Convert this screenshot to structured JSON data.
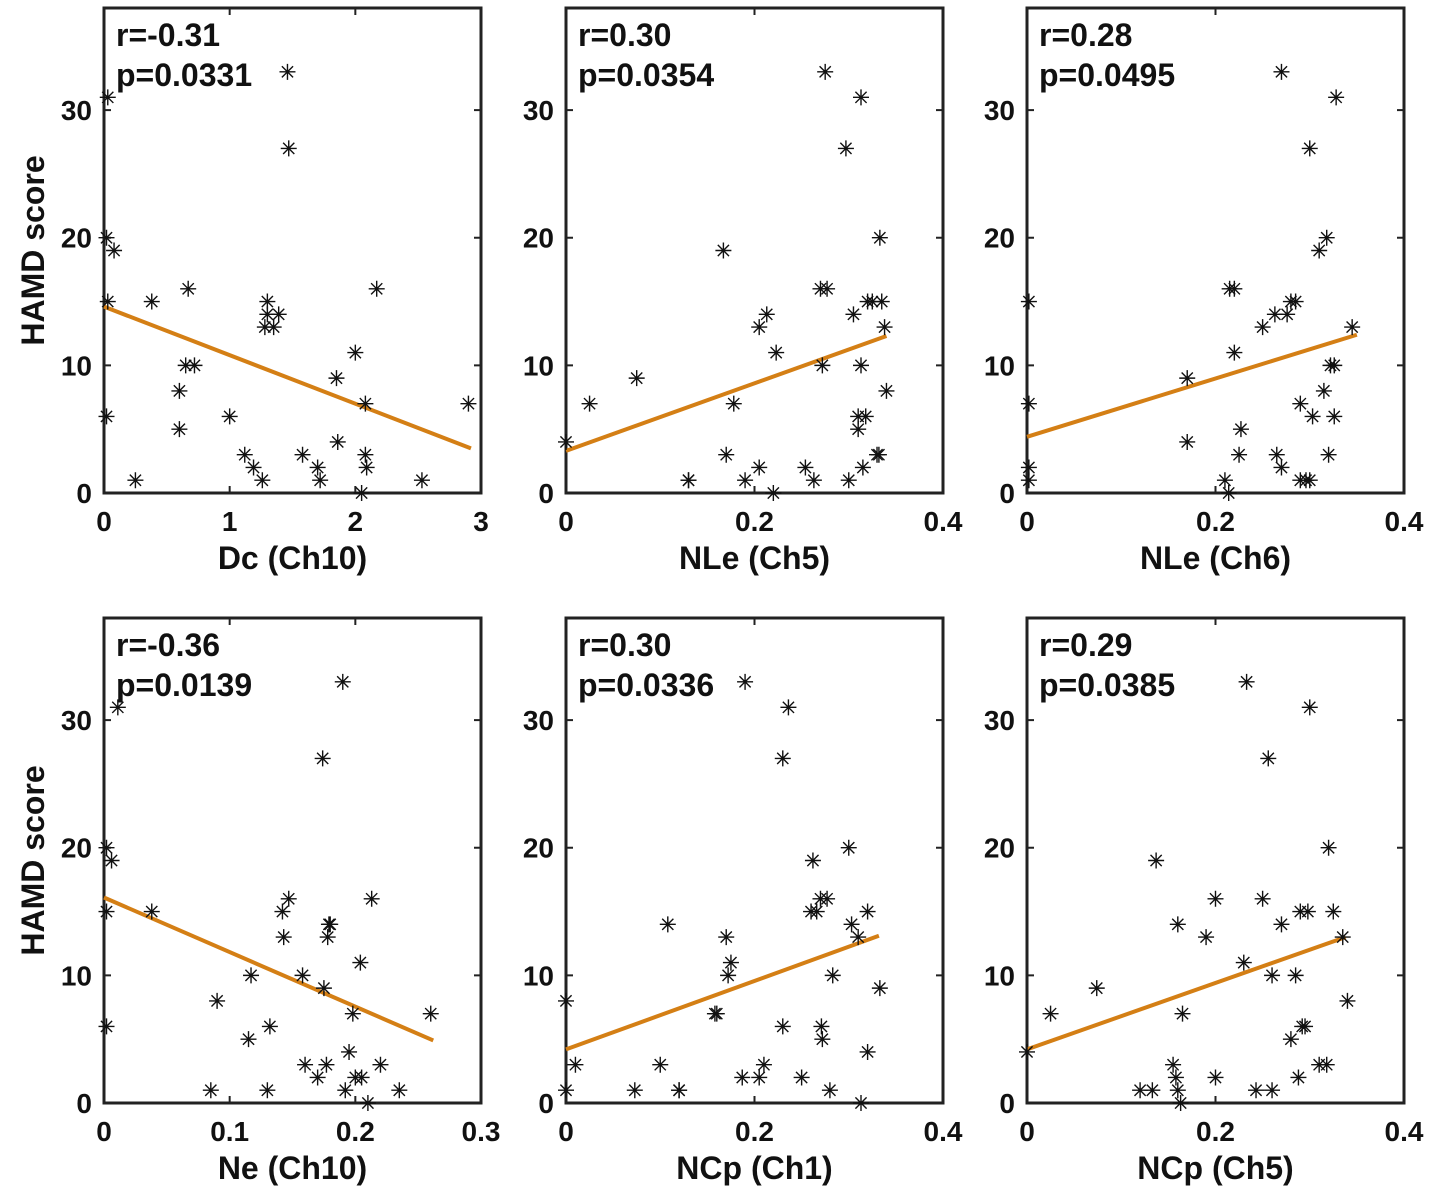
{
  "figure": {
    "ylabel": "HAMD score",
    "line_color": "#D47F15",
    "marker_color": "#111111"
  },
  "chart_data": [
    {
      "type": "scatter",
      "title": "",
      "xlabel": "Dc (Ch10)",
      "ylabel": "HAMD score",
      "annotation": [
        "r=-0.31",
        "p=0.0331"
      ],
      "xlim": [
        0,
        3
      ],
      "ylim": [
        0,
        38
      ],
      "xticks": [
        0,
        1,
        2,
        3
      ],
      "xtick_labels": [
        "0",
        "1",
        "2",
        "3"
      ],
      "yticks": [
        0,
        10,
        20,
        30
      ],
      "fit_line": {
        "x": [
          0,
          2.92
        ],
        "y": [
          14.6,
          3.5
        ]
      },
      "points": [
        [
          0.03,
          31
        ],
        [
          0.02,
          20
        ],
        [
          0.08,
          19
        ],
        [
          0.03,
          15
        ],
        [
          0.02,
          6
        ],
        [
          0.25,
          1
        ],
        [
          0.38,
          15
        ],
        [
          0.6,
          8
        ],
        [
          0.6,
          5
        ],
        [
          0.67,
          16
        ],
        [
          0.65,
          10
        ],
        [
          0.72,
          10
        ],
        [
          1.0,
          6
        ],
        [
          1.12,
          3
        ],
        [
          1.19,
          2
        ],
        [
          1.26,
          1
        ],
        [
          1.28,
          13
        ],
        [
          1.3,
          15
        ],
        [
          1.3,
          14
        ],
        [
          1.35,
          13
        ],
        [
          1.39,
          14
        ],
        [
          1.46,
          33
        ],
        [
          1.47,
          27
        ],
        [
          1.58,
          3
        ],
        [
          1.7,
          2
        ],
        [
          1.72,
          1
        ],
        [
          1.85,
          9
        ],
        [
          1.86,
          4
        ],
        [
          2.0,
          11
        ],
        [
          2.05,
          0
        ],
        [
          2.08,
          7
        ],
        [
          2.08,
          3
        ],
        [
          2.09,
          2
        ],
        [
          2.17,
          16
        ],
        [
          2.53,
          1
        ],
        [
          2.9,
          7
        ]
      ]
    },
    {
      "type": "scatter",
      "title": "",
      "xlabel": "NLe (Ch5)",
      "ylabel": "",
      "annotation": [
        "r=0.30",
        "p=0.0354"
      ],
      "xlim": [
        0,
        0.4
      ],
      "ylim": [
        0,
        38
      ],
      "xticks": [
        0,
        0.2,
        0.4
      ],
      "xtick_labels": [
        "0",
        "0.2",
        "0.4"
      ],
      "yticks": [
        0,
        10,
        20,
        30
      ],
      "fit_line": {
        "x": [
          0,
          0.34
        ],
        "y": [
          3.3,
          12.3
        ]
      },
      "points": [
        [
          0.0,
          4
        ],
        [
          0.025,
          7
        ],
        [
          0.075,
          9
        ],
        [
          0.13,
          1
        ],
        [
          0.13,
          1
        ],
        [
          0.167,
          19
        ],
        [
          0.17,
          3
        ],
        [
          0.178,
          7
        ],
        [
          0.19,
          1
        ],
        [
          0.205,
          13
        ],
        [
          0.205,
          2
        ],
        [
          0.213,
          14
        ],
        [
          0.22,
          0
        ],
        [
          0.223,
          11
        ],
        [
          0.254,
          2
        ],
        [
          0.263,
          1
        ],
        [
          0.27,
          16
        ],
        [
          0.272,
          10
        ],
        [
          0.277,
          16
        ],
        [
          0.275,
          33
        ],
        [
          0.297,
          27
        ],
        [
          0.3,
          1
        ],
        [
          0.305,
          14
        ],
        [
          0.31,
          6
        ],
        [
          0.31,
          5
        ],
        [
          0.313,
          31
        ],
        [
          0.313,
          10
        ],
        [
          0.315,
          2
        ],
        [
          0.318,
          6
        ],
        [
          0.32,
          15
        ],
        [
          0.325,
          15
        ],
        [
          0.33,
          3
        ],
        [
          0.332,
          3
        ],
        [
          0.333,
          20
        ],
        [
          0.335,
          15
        ],
        [
          0.338,
          13
        ],
        [
          0.34,
          8
        ]
      ]
    },
    {
      "type": "scatter",
      "title": "",
      "xlabel": "NLe (Ch6)",
      "ylabel": "",
      "annotation": [
        "r=0.28",
        "p=0.0495"
      ],
      "xlim": [
        0,
        0.4
      ],
      "ylim": [
        0,
        38
      ],
      "xticks": [
        0,
        0.2,
        0.4
      ],
      "xtick_labels": [
        "0",
        "0.2",
        "0.4"
      ],
      "yticks": [
        0,
        10,
        20,
        30
      ],
      "fit_line": {
        "x": [
          0,
          0.35
        ],
        "y": [
          4.4,
          12.4
        ]
      },
      "points": [
        [
          0.002,
          15
        ],
        [
          0.002,
          7
        ],
        [
          0.002,
          2
        ],
        [
          0.002,
          1
        ],
        [
          0.17,
          9
        ],
        [
          0.17,
          4
        ],
        [
          0.21,
          1
        ],
        [
          0.214,
          0
        ],
        [
          0.215,
          16
        ],
        [
          0.22,
          16
        ],
        [
          0.22,
          11
        ],
        [
          0.225,
          3
        ],
        [
          0.227,
          5
        ],
        [
          0.25,
          13
        ],
        [
          0.263,
          14
        ],
        [
          0.265,
          3
        ],
        [
          0.27,
          2
        ],
        [
          0.27,
          33
        ],
        [
          0.276,
          14
        ],
        [
          0.28,
          15
        ],
        [
          0.285,
          15
        ],
        [
          0.29,
          7
        ],
        [
          0.29,
          1
        ],
        [
          0.296,
          1
        ],
        [
          0.3,
          1
        ],
        [
          0.3,
          27
        ],
        [
          0.303,
          6
        ],
        [
          0.31,
          19
        ],
        [
          0.315,
          8
        ],
        [
          0.318,
          20
        ],
        [
          0.32,
          3
        ],
        [
          0.322,
          10
        ],
        [
          0.326,
          10
        ],
        [
          0.326,
          6
        ],
        [
          0.328,
          31
        ],
        [
          0.345,
          13
        ]
      ]
    },
    {
      "type": "scatter",
      "title": "",
      "xlabel": "Ne (Ch10)",
      "ylabel": "HAMD score",
      "annotation": [
        "r=-0.36",
        "p=0.0139"
      ],
      "xlim": [
        0,
        0.3
      ],
      "ylim": [
        0,
        38
      ],
      "xticks": [
        0,
        0.1,
        0.2,
        0.3
      ],
      "xtick_labels": [
        "0",
        "0.1",
        "0.2",
        "0.3"
      ],
      "yticks": [
        0,
        10,
        20,
        30
      ],
      "fit_line": {
        "x": [
          0,
          0.262
        ],
        "y": [
          16.1,
          4.9
        ]
      },
      "points": [
        [
          0.002,
          20
        ],
        [
          0.006,
          19
        ],
        [
          0.011,
          31
        ],
        [
          0.002,
          15
        ],
        [
          0.002,
          6
        ],
        [
          0.038,
          15
        ],
        [
          0.085,
          1
        ],
        [
          0.09,
          8
        ],
        [
          0.115,
          5
        ],
        [
          0.117,
          10
        ],
        [
          0.13,
          1
        ],
        [
          0.132,
          6
        ],
        [
          0.142,
          15
        ],
        [
          0.143,
          13
        ],
        [
          0.147,
          16
        ],
        [
          0.158,
          10
        ],
        [
          0.16,
          3
        ],
        [
          0.17,
          2
        ],
        [
          0.174,
          27
        ],
        [
          0.175,
          9
        ],
        [
          0.177,
          3
        ],
        [
          0.178,
          13
        ],
        [
          0.179,
          14
        ],
        [
          0.18,
          14
        ],
        [
          0.19,
          33
        ],
        [
          0.192,
          1
        ],
        [
          0.195,
          4
        ],
        [
          0.198,
          7
        ],
        [
          0.2,
          2
        ],
        [
          0.204,
          11
        ],
        [
          0.205,
          2
        ],
        [
          0.21,
          0
        ],
        [
          0.213,
          16
        ],
        [
          0.22,
          3
        ],
        [
          0.235,
          1
        ],
        [
          0.26,
          7
        ]
      ]
    },
    {
      "type": "scatter",
      "title": "",
      "xlabel": "NCp (Ch1)",
      "ylabel": "",
      "annotation": [
        "r=0.30",
        "p=0.0336"
      ],
      "xlim": [
        0,
        0.4
      ],
      "ylim": [
        0,
        38
      ],
      "xticks": [
        0,
        0.2,
        0.4
      ],
      "xtick_labels": [
        "0",
        "0.2",
        "0.4"
      ],
      "yticks": [
        0,
        10,
        20,
        30
      ],
      "fit_line": {
        "x": [
          0,
          0.332
        ],
        "y": [
          4.2,
          13.1
        ]
      },
      "points": [
        [
          0.0,
          8
        ],
        [
          0.0,
          1
        ],
        [
          0.01,
          3
        ],
        [
          0.073,
          1
        ],
        [
          0.1,
          3
        ],
        [
          0.108,
          14
        ],
        [
          0.12,
          1
        ],
        [
          0.12,
          1
        ],
        [
          0.158,
          7
        ],
        [
          0.16,
          7
        ],
        [
          0.17,
          13
        ],
        [
          0.172,
          10
        ],
        [
          0.175,
          11
        ],
        [
          0.187,
          2
        ],
        [
          0.19,
          33
        ],
        [
          0.205,
          2
        ],
        [
          0.21,
          3
        ],
        [
          0.23,
          6
        ],
        [
          0.23,
          27
        ],
        [
          0.236,
          31
        ],
        [
          0.25,
          2
        ],
        [
          0.26,
          15
        ],
        [
          0.262,
          19
        ],
        [
          0.266,
          15
        ],
        [
          0.27,
          16
        ],
        [
          0.271,
          6
        ],
        [
          0.272,
          5
        ],
        [
          0.277,
          16
        ],
        [
          0.28,
          1
        ],
        [
          0.283,
          10
        ],
        [
          0.3,
          20
        ],
        [
          0.303,
          14
        ],
        [
          0.31,
          13
        ],
        [
          0.313,
          0
        ],
        [
          0.32,
          15
        ],
        [
          0.32,
          4
        ],
        [
          0.333,
          9
        ]
      ]
    },
    {
      "type": "scatter",
      "title": "",
      "xlabel": "NCp (Ch5)",
      "ylabel": "",
      "annotation": [
        "r=0.29",
        "p=0.0385"
      ],
      "xlim": [
        0,
        0.4
      ],
      "ylim": [
        0,
        38
      ],
      "xticks": [
        0,
        0.2,
        0.4
      ],
      "xtick_labels": [
        "0",
        "0.2",
        "0.4"
      ],
      "yticks": [
        0,
        10,
        20,
        30
      ],
      "fit_line": {
        "x": [
          0,
          0.338
        ],
        "y": [
          4.2,
          13.0
        ]
      },
      "points": [
        [
          0.0,
          4
        ],
        [
          0.025,
          7
        ],
        [
          0.074,
          9
        ],
        [
          0.12,
          1
        ],
        [
          0.133,
          1
        ],
        [
          0.137,
          19
        ],
        [
          0.155,
          3
        ],
        [
          0.158,
          2
        ],
        [
          0.16,
          1
        ],
        [
          0.16,
          14
        ],
        [
          0.163,
          0
        ],
        [
          0.165,
          7
        ],
        [
          0.19,
          13
        ],
        [
          0.2,
          16
        ],
        [
          0.2,
          2
        ],
        [
          0.23,
          11
        ],
        [
          0.233,
          33
        ],
        [
          0.243,
          1
        ],
        [
          0.25,
          16
        ],
        [
          0.256,
          27
        ],
        [
          0.26,
          10
        ],
        [
          0.26,
          1
        ],
        [
          0.27,
          14
        ],
        [
          0.28,
          5
        ],
        [
          0.285,
          10
        ],
        [
          0.288,
          2
        ],
        [
          0.29,
          15
        ],
        [
          0.292,
          6
        ],
        [
          0.295,
          6
        ],
        [
          0.298,
          15
        ],
        [
          0.3,
          31
        ],
        [
          0.31,
          3
        ],
        [
          0.318,
          3
        ],
        [
          0.32,
          20
        ],
        [
          0.325,
          15
        ],
        [
          0.335,
          13
        ],
        [
          0.34,
          8
        ]
      ]
    }
  ]
}
